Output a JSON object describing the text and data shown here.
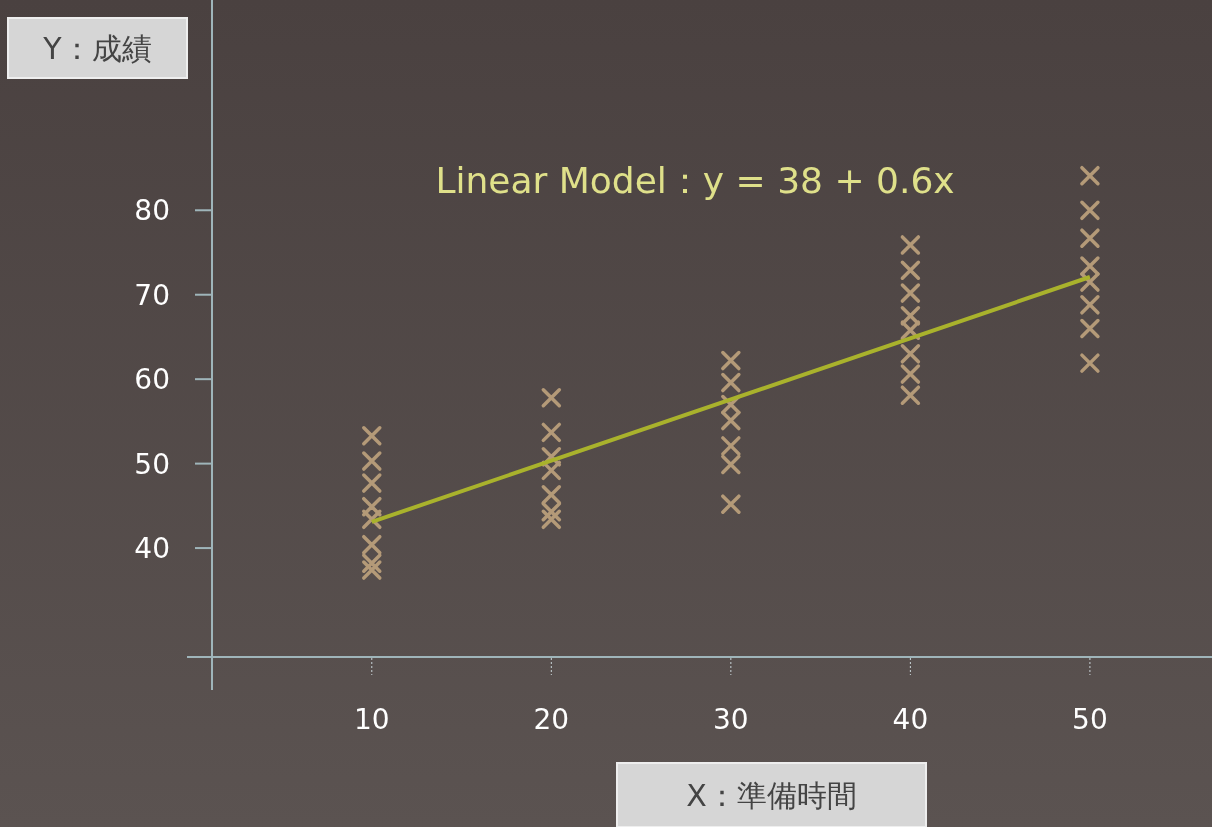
{
  "chart_data": {
    "type": "scatter",
    "title": "Linear Model：y = 38 + 0.6x",
    "xlabel": "X：準備時間",
    "ylabel": "Y：成績",
    "xlim": [
      1.1,
      56.8
    ],
    "ylim": [
      27.1,
      104.9
    ],
    "xticks": [
      10,
      20,
      30,
      40,
      50
    ],
    "yticks": [
      40,
      50,
      60,
      70,
      80
    ],
    "grid": false,
    "series": [
      {
        "type": "scatter",
        "marker": "cross",
        "color": "#b49a78",
        "x": [
          10,
          10,
          10,
          10,
          10,
          10,
          10,
          10,
          20,
          20,
          20,
          20,
          20,
          20,
          20,
          30,
          30,
          30,
          30,
          30,
          30,
          30,
          40,
          40,
          40,
          40,
          40,
          40,
          40,
          40,
          50,
          50,
          50,
          50,
          50,
          50,
          50,
          50
        ],
        "values": [
          53.3,
          50.3,
          47.7,
          44.9,
          43.4,
          40.4,
          38.2,
          37.4,
          57.8,
          53.7,
          50.8,
          49.2,
          46.3,
          44.3,
          43.4,
          62.2,
          59.6,
          57.0,
          55.1,
          52.1,
          49.9,
          45.2,
          75.9,
          72.9,
          70.2,
          67.5,
          65.8,
          63.0,
          60.6,
          58.1,
          84.1,
          80.0,
          76.7,
          73.4,
          71.5,
          68.8,
          66.0,
          61.9
        ]
      },
      {
        "type": "line",
        "color": "#a9b22c",
        "x": [
          10,
          50
        ],
        "values": [
          43.1,
          72.1
        ]
      }
    ]
  }
}
